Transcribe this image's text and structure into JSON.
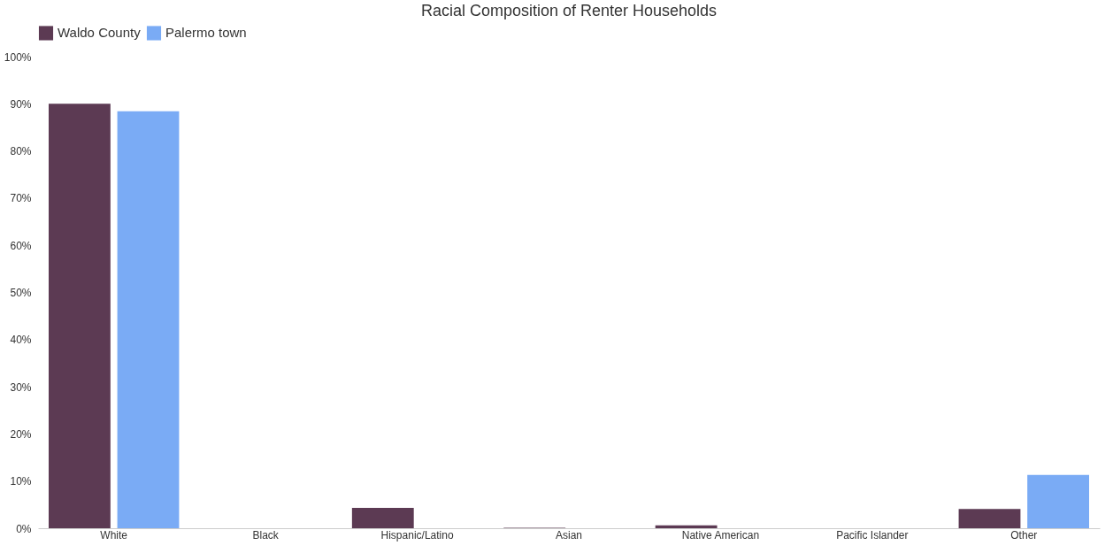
{
  "chart_data": {
    "type": "bar",
    "title": "Racial Composition of Renter Households",
    "categories": [
      "White",
      "Black",
      "Hispanic/Latino",
      "Asian",
      "Native American",
      "Pacific Islander",
      "Other"
    ],
    "series": [
      {
        "name": "Waldo County",
        "color": "#5c3a53",
        "values": [
          90.0,
          0,
          4.3,
          0.1,
          0.6,
          0,
          4.1
        ]
      },
      {
        "name": "Palermo town",
        "color": "#7aabf5",
        "values": [
          88.4,
          0,
          0,
          0,
          0,
          0,
          11.3
        ]
      }
    ],
    "ylim": [
      0,
      100
    ],
    "yticks": [
      {
        "value": 0,
        "label": "0%"
      },
      {
        "value": 10,
        "label": "10%"
      },
      {
        "value": 20,
        "label": "20%"
      },
      {
        "value": 30,
        "label": "30%"
      },
      {
        "value": 40,
        "label": "40%"
      },
      {
        "value": 50,
        "label": "50%"
      },
      {
        "value": 60,
        "label": "60%"
      },
      {
        "value": 70,
        "label": "70%"
      },
      {
        "value": 80,
        "label": "80%"
      },
      {
        "value": 90,
        "label": "90%"
      },
      {
        "value": 100,
        "label": "100%"
      }
    ],
    "grid": false,
    "legend": "top"
  }
}
